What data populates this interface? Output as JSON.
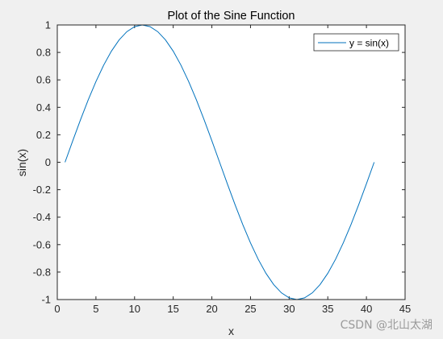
{
  "chart_data": {
    "type": "line",
    "title": "Plot of the Sine Function",
    "xlabel": "x",
    "ylabel": "sin(x)",
    "xlim": [
      0,
      45
    ],
    "ylim": [
      -1,
      1
    ],
    "xticks": [
      0,
      5,
      10,
      15,
      20,
      25,
      30,
      35,
      40,
      45
    ],
    "yticks": [
      -1,
      -0.8,
      -0.6,
      -0.4,
      -0.2,
      0,
      0.2,
      0.4,
      0.6,
      0.8,
      1
    ],
    "xtick_labels": [
      "0",
      "5",
      "10",
      "15",
      "20",
      "25",
      "30",
      "35",
      "40",
      "45"
    ],
    "ytick_labels": [
      "-1",
      "-0.8",
      "-0.6",
      "-0.4",
      "-0.2",
      "0",
      "0.2",
      "0.4",
      "0.6",
      "0.8",
      "1"
    ],
    "grid": false,
    "legend_position": "top-right",
    "series": [
      {
        "name": "y = sin(x)",
        "color": "#0072bd",
        "x": [
          1,
          2,
          3,
          4,
          5,
          6,
          7,
          8,
          9,
          10,
          11,
          12,
          13,
          14,
          15,
          16,
          17,
          18,
          19,
          20,
          21,
          22,
          23,
          24,
          25,
          26,
          27,
          28,
          29,
          30,
          31,
          32,
          33,
          34,
          35,
          36,
          37,
          38,
          39,
          40,
          41
        ],
        "y": [
          0,
          0.1564,
          0.309,
          0.454,
          0.5878,
          0.7071,
          0.809,
          0.891,
          0.9511,
          0.9877,
          1,
          0.9877,
          0.9511,
          0.891,
          0.809,
          0.7071,
          0.5878,
          0.454,
          0.309,
          0.1564,
          0,
          -0.1564,
          -0.309,
          -0.454,
          -0.5878,
          -0.7071,
          -0.809,
          -0.891,
          -0.9511,
          -0.9877,
          -1,
          -0.9877,
          -0.9511,
          -0.891,
          -0.809,
          -0.7071,
          -0.5878,
          -0.454,
          -0.309,
          -0.1564,
          0
        ]
      }
    ]
  },
  "watermark": "CSDN @北山太湖"
}
